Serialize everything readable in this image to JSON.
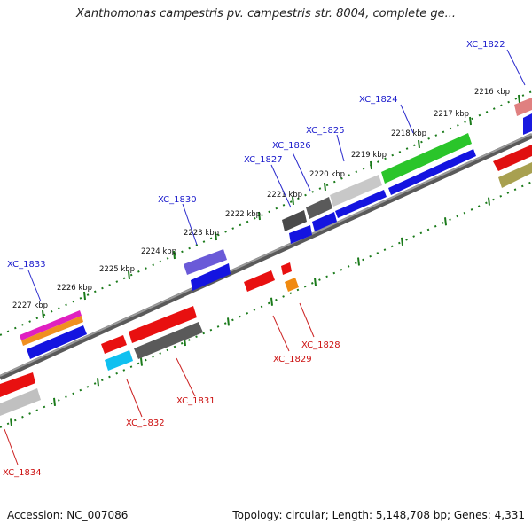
{
  "title": "Xanthomonas campestris pv. campestris str. 8004, complete ge...",
  "footer": {
    "accession": "Accession: NC_007086",
    "summary": "Topology: circular; Length: 5,148,708 bp; Genes: 4,331"
  },
  "colors": {
    "axis": "#7a7a7a",
    "ticks": "#1a7a1a",
    "forward_label": "#1a1acc",
    "reverse_label": "#cc1111"
  },
  "ticks": [
    {
      "label": "2216 kbp"
    },
    {
      "label": "2217 kbp"
    },
    {
      "label": "2218 kbp"
    },
    {
      "label": "2219 kbp"
    },
    {
      "label": "2220 kbp"
    },
    {
      "label": "2221 kbp"
    },
    {
      "label": "2222 kbp"
    },
    {
      "label": "2223 kbp"
    },
    {
      "label": "2224 kbp"
    },
    {
      "label": "2225 kbp"
    },
    {
      "label": "2226 kbp"
    },
    {
      "label": "2227 kbp"
    }
  ],
  "gene_labels": [
    {
      "name": "XC_1822",
      "strand": "forward"
    },
    {
      "name": "XC_1824",
      "strand": "forward"
    },
    {
      "name": "XC_1825",
      "strand": "forward"
    },
    {
      "name": "XC_1826",
      "strand": "forward"
    },
    {
      "name": "XC_1827",
      "strand": "forward"
    },
    {
      "name": "XC_1830",
      "strand": "forward"
    },
    {
      "name": "XC_1833",
      "strand": "forward"
    },
    {
      "name": "XC_1828",
      "strand": "reverse"
    },
    {
      "name": "XC_1829",
      "strand": "reverse"
    },
    {
      "name": "XC_1831",
      "strand": "reverse"
    },
    {
      "name": "XC_1832",
      "strand": "reverse"
    },
    {
      "name": "XC_1834",
      "strand": "reverse"
    }
  ]
}
